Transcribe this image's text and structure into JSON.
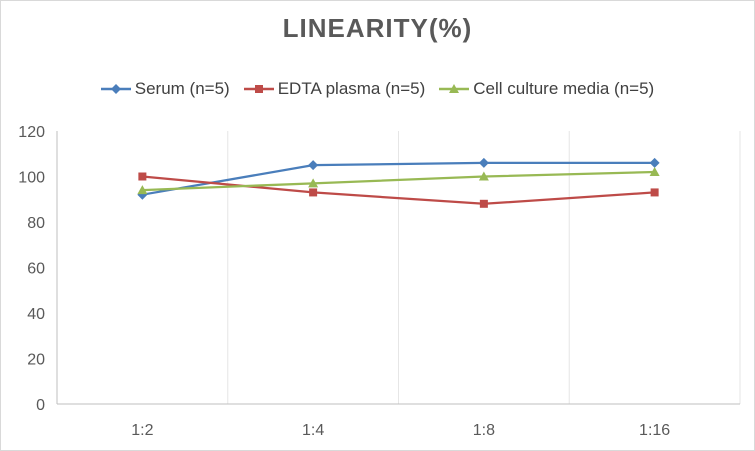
{
  "chart_data": {
    "type": "line",
    "title": "LINEARITY(%)",
    "xlabel": "",
    "ylabel": "",
    "categories": [
      "1:2",
      "1:4",
      "1:8",
      "1:16"
    ],
    "ylim": [
      0,
      120
    ],
    "yticks": [
      0,
      20,
      40,
      60,
      80,
      100,
      120
    ],
    "grid": "vertical",
    "legend_position": "top",
    "series": [
      {
        "name": "Serum (n=5)",
        "values": [
          92,
          105,
          106,
          106
        ],
        "color": "#4a7ebb",
        "marker": "diamond"
      },
      {
        "name": "EDTA plasma (n=5)",
        "values": [
          100,
          93,
          88,
          93
        ],
        "color": "#be4b48",
        "marker": "square"
      },
      {
        "name": "Cell culture media (n=5)",
        "values": [
          94,
          97,
          100,
          102
        ],
        "color": "#98b954",
        "marker": "triangle"
      }
    ]
  }
}
